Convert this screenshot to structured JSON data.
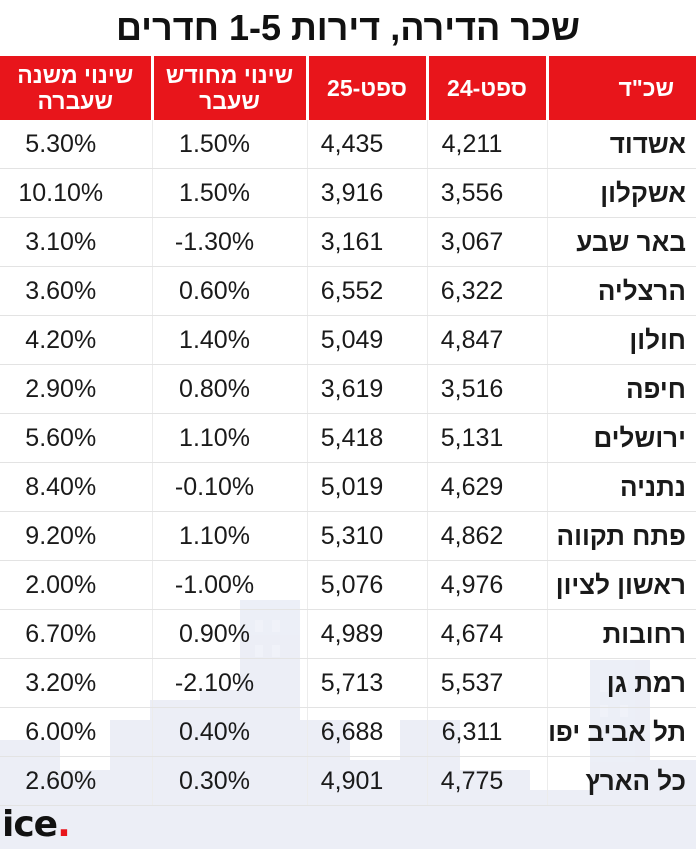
{
  "title": "שכר הדירה, דירות 1-5 חדרים",
  "colors": {
    "header_bg": "#e8151b",
    "header_text": "#ffffff",
    "logo_dot": "#e8151b"
  },
  "table": {
    "headers": [
      "שכ\"ד",
      "ספט-24",
      "ספט-25",
      "שינוי מחודש שעבר",
      "שינוי משנה שעברה"
    ],
    "rows": [
      {
        "city": "אשדוד",
        "sep24": "4,211",
        "sep25": "4,435",
        "mom": "1.50%",
        "yoy": "5.30%"
      },
      {
        "city": "אשקלון",
        "sep24": "3,556",
        "sep25": "3,916",
        "mom": "1.50%",
        "yoy": "10.10%"
      },
      {
        "city": "באר שבע",
        "sep24": "3,067",
        "sep25": "3,161",
        "mom": "-1.30%",
        "yoy": "3.10%"
      },
      {
        "city": "הרצליה",
        "sep24": "6,322",
        "sep25": "6,552",
        "mom": "0.60%",
        "yoy": "3.60%"
      },
      {
        "city": "חולון",
        "sep24": "4,847",
        "sep25": "5,049",
        "mom": "1.40%",
        "yoy": "4.20%"
      },
      {
        "city": "חיפה",
        "sep24": "3,516",
        "sep25": "3,619",
        "mom": "0.80%",
        "yoy": "2.90%"
      },
      {
        "city": "ירושלים",
        "sep24": "5,131",
        "sep25": "5,418",
        "mom": "1.10%",
        "yoy": "5.60%"
      },
      {
        "city": "נתניה",
        "sep24": "4,629",
        "sep25": "5,019",
        "mom": "-0.10%",
        "yoy": "8.40%"
      },
      {
        "city": "פתח תקווה",
        "sep24": "4,862",
        "sep25": "5,310",
        "mom": "1.10%",
        "yoy": "9.20%"
      },
      {
        "city": "ראשון לציון",
        "sep24": "4,976",
        "sep25": "5,076",
        "mom": "-1.00%",
        "yoy": "2.00%"
      },
      {
        "city": "רחובות",
        "sep24": "4,674",
        "sep25": "4,989",
        "mom": "0.90%",
        "yoy": "6.70%"
      },
      {
        "city": "רמת גן",
        "sep24": "5,537",
        "sep25": "5,713",
        "mom": "-2.10%",
        "yoy": "3.20%"
      },
      {
        "city": "תל אביב יפו",
        "sep24": "6,311",
        "sep25": "6,688",
        "mom": "0.40%",
        "yoy": "6.00%"
      },
      {
        "city": "כל הארץ",
        "sep24": "4,775",
        "sep25": "4,901",
        "mom": "0.30%",
        "yoy": "2.60%"
      }
    ]
  },
  "logo": {
    "text": "ice",
    "dot": "."
  }
}
